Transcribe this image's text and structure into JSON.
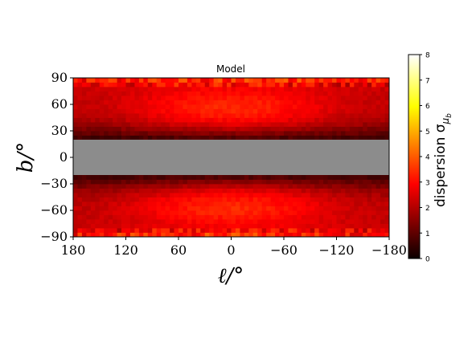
{
  "chart_data": [
    {
      "type": "heatmap",
      "title": "Model",
      "xlabel": "ℓ/°",
      "ylabel": "b/°",
      "xlim": [
        180,
        -180
      ],
      "ylim": [
        -90,
        90
      ],
      "xticks": [
        180,
        120,
        60,
        0,
        -60,
        -120,
        -180
      ],
      "xtick_labels": [
        "180",
        "120",
        "60",
        "0",
        "−60",
        "−120",
        "−180"
      ],
      "yticks": [
        90,
        60,
        30,
        0,
        -30,
        -60,
        -90
      ],
      "ytick_labels": [
        "90",
        "60",
        "30",
        "0",
        "−30",
        "−60",
        "−90"
      ],
      "masked_band_b": [
        -20,
        20
      ],
      "masked_color": "#8c8c8c",
      "grid": false,
      "colorbar": {
        "label": "dispersion σ_{μ_b}",
        "label_main": "dispersion σ",
        "label_sub": "μ",
        "label_subsub": "b",
        "min": 0,
        "max": 8,
        "ticks": [
          0,
          1,
          2,
          3,
          4,
          5,
          6,
          7,
          8
        ],
        "tick_labels": [
          "0",
          "1",
          "2",
          "3",
          "4",
          "5",
          "6",
          "7",
          "8"
        ],
        "colormap": "hot"
      },
      "value_profile": {
        "description_keys": [
          "b_abs",
          "value_at_l0",
          "value_at_l180"
        ],
        "b_abs": [
          20,
          30,
          40,
          50,
          60,
          70,
          80,
          90
        ],
        "value_at_l0": [
          0.6,
          1.8,
          2.8,
          3.3,
          3.4,
          3.1,
          2.8,
          3.6
        ],
        "value_at_l180": [
          0.5,
          1.2,
          1.8,
          2.1,
          2.2,
          2.2,
          2.3,
          3.4
        ]
      }
    }
  ]
}
